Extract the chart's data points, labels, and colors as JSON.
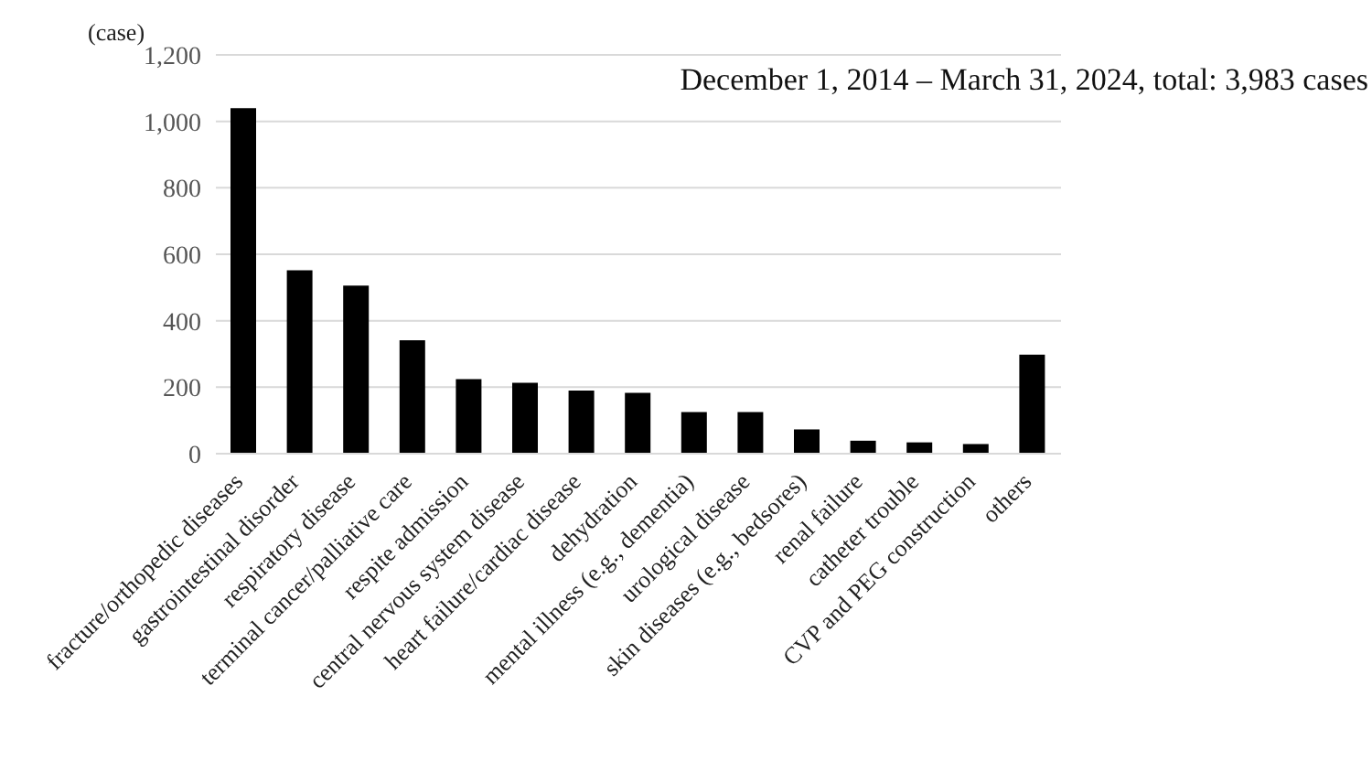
{
  "chart_data": {
    "type": "bar",
    "ylabel": "(case)",
    "annotations": [
      "December 1, 2014 – March 31, 2024, total: 3,983 cases"
    ],
    "categories": [
      "fracture/orthopedic diseases",
      "gastrointestinal disorder",
      "respiratory disease",
      "terminal cancer/palliative care",
      "respite admission",
      "central nervous system disease",
      "heart failure/cardiac disease",
      "dehydration",
      "mental illness (e.g., dementia)",
      "urological disease",
      "skin diseases (e.g., bedsores)",
      "renal failure",
      "catheter trouble",
      "CVP and PEG construction",
      "others"
    ],
    "values": [
      1040,
      552,
      506,
      341,
      224,
      213,
      190,
      183,
      125,
      125,
      73,
      39,
      34,
      29,
      298
    ],
    "color": "#000000",
    "ylim": [
      0,
      1200
    ],
    "yticks": [
      0,
      200,
      400,
      600,
      800,
      {
        "value": 1000,
        "label": "1,000"
      },
      {
        "value": 1200,
        "label": "1,200"
      }
    ],
    "grid": "y",
    "legend": false
  }
}
